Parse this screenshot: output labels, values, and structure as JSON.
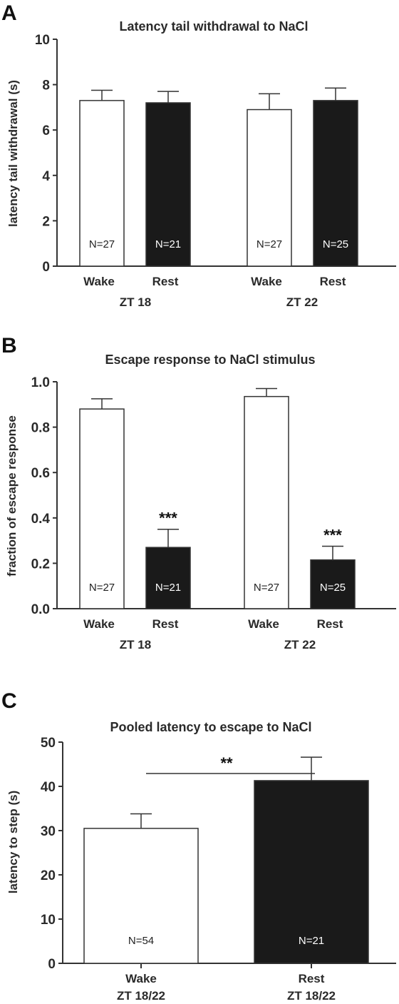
{
  "chart_data": [
    {
      "panel": "A",
      "type": "bar",
      "title": "Latency tail withdrawal to NaCl",
      "ylabel": "latency tail withdrawal (s)",
      "ylim": [
        0,
        10
      ],
      "yticks": [
        0,
        2,
        4,
        6,
        8,
        10
      ],
      "groups": [
        {
          "name": "ZT 18",
          "bars": [
            {
              "label": "Wake",
              "value": 7.3,
              "error": 0.45,
              "n": "N=27",
              "fill": "#ffffff"
            },
            {
              "label": "Rest",
              "value": 7.2,
              "error": 0.5,
              "n": "N=21",
              "fill": "#1a1a1a"
            }
          ]
        },
        {
          "name": "ZT 22",
          "bars": [
            {
              "label": "Wake",
              "value": 6.9,
              "error": 0.7,
              "n": "N=27",
              "fill": "#ffffff"
            },
            {
              "label": "Rest",
              "value": 7.3,
              "error": 0.55,
              "n": "N=25",
              "fill": "#1a1a1a"
            }
          ]
        }
      ]
    },
    {
      "panel": "B",
      "type": "bar",
      "title": "Escape response to NaCl stimulus",
      "ylabel": "fraction of escape response",
      "ylim": [
        0,
        1.0
      ],
      "yticks": [
        "0.0",
        "0.2",
        "0.4",
        "0.6",
        "0.8",
        "1.0"
      ],
      "groups": [
        {
          "name": "ZT 18",
          "bars": [
            {
              "label": "Wake",
              "value": 0.88,
              "error": 0.045,
              "n": "N=27",
              "fill": "#ffffff"
            },
            {
              "label": "Rest",
              "value": 0.27,
              "error": 0.08,
              "n": "N=21",
              "fill": "#1a1a1a",
              "sig": "***"
            }
          ]
        },
        {
          "name": "ZT 22",
          "bars": [
            {
              "label": "Wake",
              "value": 0.935,
              "error": 0.035,
              "n": "N=27",
              "fill": "#ffffff"
            },
            {
              "label": "Rest",
              "value": 0.215,
              "error": 0.06,
              "n": "N=25",
              "fill": "#1a1a1a",
              "sig": "***"
            }
          ]
        }
      ]
    },
    {
      "panel": "C",
      "type": "bar",
      "title": "Pooled latency to escape to NaCl",
      "ylabel": "latency to step (s)",
      "ylim": [
        0,
        50
      ],
      "yticks": [
        0,
        10,
        20,
        30,
        40,
        50
      ],
      "bars": [
        {
          "label": "Wake",
          "sublabel": "ZT 18/22",
          "value": 30.5,
          "error": 3.3,
          "n": "N=54",
          "fill": "#ffffff"
        },
        {
          "label": "Rest",
          "sublabel": "ZT 18/22",
          "value": 41.3,
          "error": 5.3,
          "n": "N=21",
          "fill": "#1a1a1a"
        }
      ],
      "significance": "**"
    }
  ]
}
